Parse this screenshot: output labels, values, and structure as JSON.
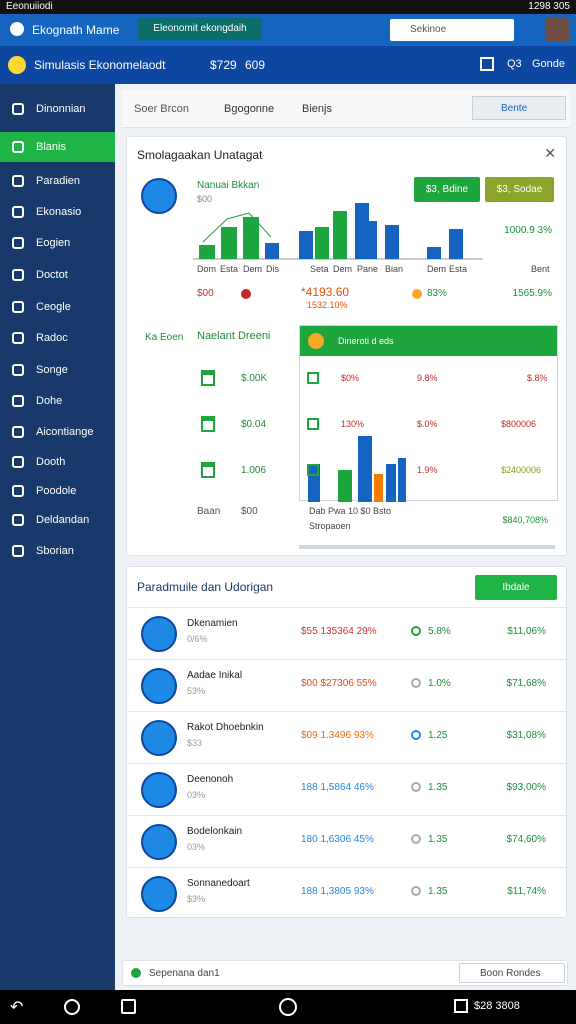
{
  "status_bar": {
    "left": "Eeonuiiodi",
    "right": "1298 305"
  },
  "top_bar": {
    "title": "Ekognath Mame",
    "button": "Eleonomit ekongdaih",
    "search": "Sekinoe"
  },
  "sub_bar": {
    "title": "Simulasis Ekonomelaodt",
    "amount": "$729",
    "amount2": "609",
    "code": "Q3",
    "right": "Gonde"
  },
  "sidebar": {
    "active": 1,
    "items": [
      "Dinonnian",
      "Blanis",
      "Paradien",
      "Ekonasio",
      "Eogien",
      "Doctot",
      "Ceogle",
      "Radoc",
      "Songe",
      "Dohe",
      "Aicontiange",
      "Dooth",
      "Poodole",
      "Deldandan",
      "Sborian"
    ]
  },
  "tabs": {
    "items": [
      "Soer Brcon",
      "Bgogonne",
      "Bienjs"
    ],
    "button": "Bente"
  },
  "panel": {
    "title": "Smolagaakan Unatagat",
    "profile_name": "Nanuai Bkkan",
    "profile_sub": "$00",
    "buttons": [
      "$3, Bdine",
      "$3, Sodae"
    ],
    "chart_labels": [
      "Dom",
      "Esta",
      "Dem",
      "Dis",
      "Seta",
      "Dem",
      "Pane",
      "Bian",
      "Dem",
      "Esta",
      "Bent"
    ],
    "right_value": "1000.9 3%",
    "stats": {
      "left": "$00",
      "middle": "*4193.60",
      "middle_sub": "1532.10%",
      "pct": "83%",
      "right": "1565.9%"
    },
    "section_label": "Ka Eoen",
    "dropdown": "Naelant Dreeni",
    "list_values": [
      "$.00K",
      "$0.04",
      "1.006"
    ],
    "list_footer": [
      "Baan",
      "$00"
    ],
    "table_header": "Dineroti d eds",
    "table_rows": [
      [
        "$0%",
        "9.8%",
        "$.8%"
      ],
      [
        "130%",
        "$.0%",
        "$800006"
      ],
      [
        "1.9%",
        "$2400006"
      ]
    ],
    "table_axis": "Dab Pwa 10 $0 Bsto",
    "table_footer": "Stropaoen",
    "table_total": "$840,708%"
  },
  "list_card": {
    "title": "Paradmuile dan Udorigan",
    "button": "Ibdale",
    "rows": [
      {
        "name": "Dkenamien",
        "sub": "0/6%",
        "value": "$55 135364 29%",
        "pct": "5.8%",
        "amount": "$11,06%"
      },
      {
        "name": "Aadae Inikal",
        "sub": "53%",
        "value": "$00 $27306 55%",
        "pct": "1.0%",
        "amount": "$71,68%"
      },
      {
        "name": "Rakot Dhoebnkin",
        "sub": "$33",
        "value": "$09 1.3496 93%",
        "pct": "1.25",
        "amount": "$31,08%"
      },
      {
        "name": "Deenonoh",
        "sub": "03%",
        "value": "188 1,5864 46%",
        "pct": "1.35",
        "amount": "$93,00%"
      },
      {
        "name": "Bodelonkain",
        "sub": "03%",
        "value": "180 1,6306 45%",
        "pct": "1.35",
        "amount": "$74,60%"
      },
      {
        "name": "Sonnanedoart",
        "sub": "$3%",
        "value": "188 1,3805 93%",
        "pct": "1.35",
        "amount": "$11,74%"
      }
    ]
  },
  "bottom_bar": {
    "left": "Sepenana dan1",
    "right": "Boon Rondes"
  },
  "nav_bar": {
    "right": "$28 3808"
  }
}
